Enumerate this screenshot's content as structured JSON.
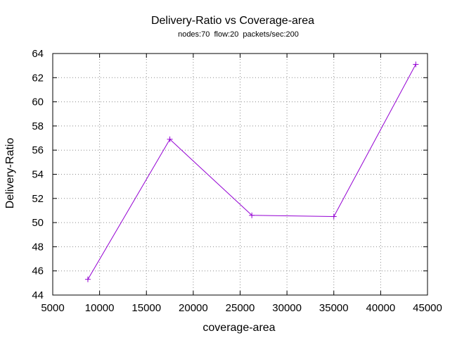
{
  "chart_data": {
    "type": "line",
    "title": "Delivery-Ratio vs Coverage-area",
    "subtitle": "nodes:70  flow:20  packets/sec:200",
    "xlabel": "coverage-area",
    "ylabel": "Delivery-Ratio",
    "xlim": [
      5000,
      45000
    ],
    "ylim": [
      44,
      64
    ],
    "xticks": [
      5000,
      10000,
      15000,
      20000,
      25000,
      30000,
      35000,
      40000,
      45000
    ],
    "yticks": [
      44,
      46,
      48,
      50,
      52,
      54,
      56,
      58,
      60,
      62,
      64
    ],
    "grid": true,
    "series": [
      {
        "color": "#9400d3",
        "marker": "plus",
        "x": [
          8750,
          17500,
          26250,
          35000,
          43750
        ],
        "y": [
          45.3,
          56.9,
          50.6,
          50.5,
          63.1
        ]
      }
    ]
  }
}
